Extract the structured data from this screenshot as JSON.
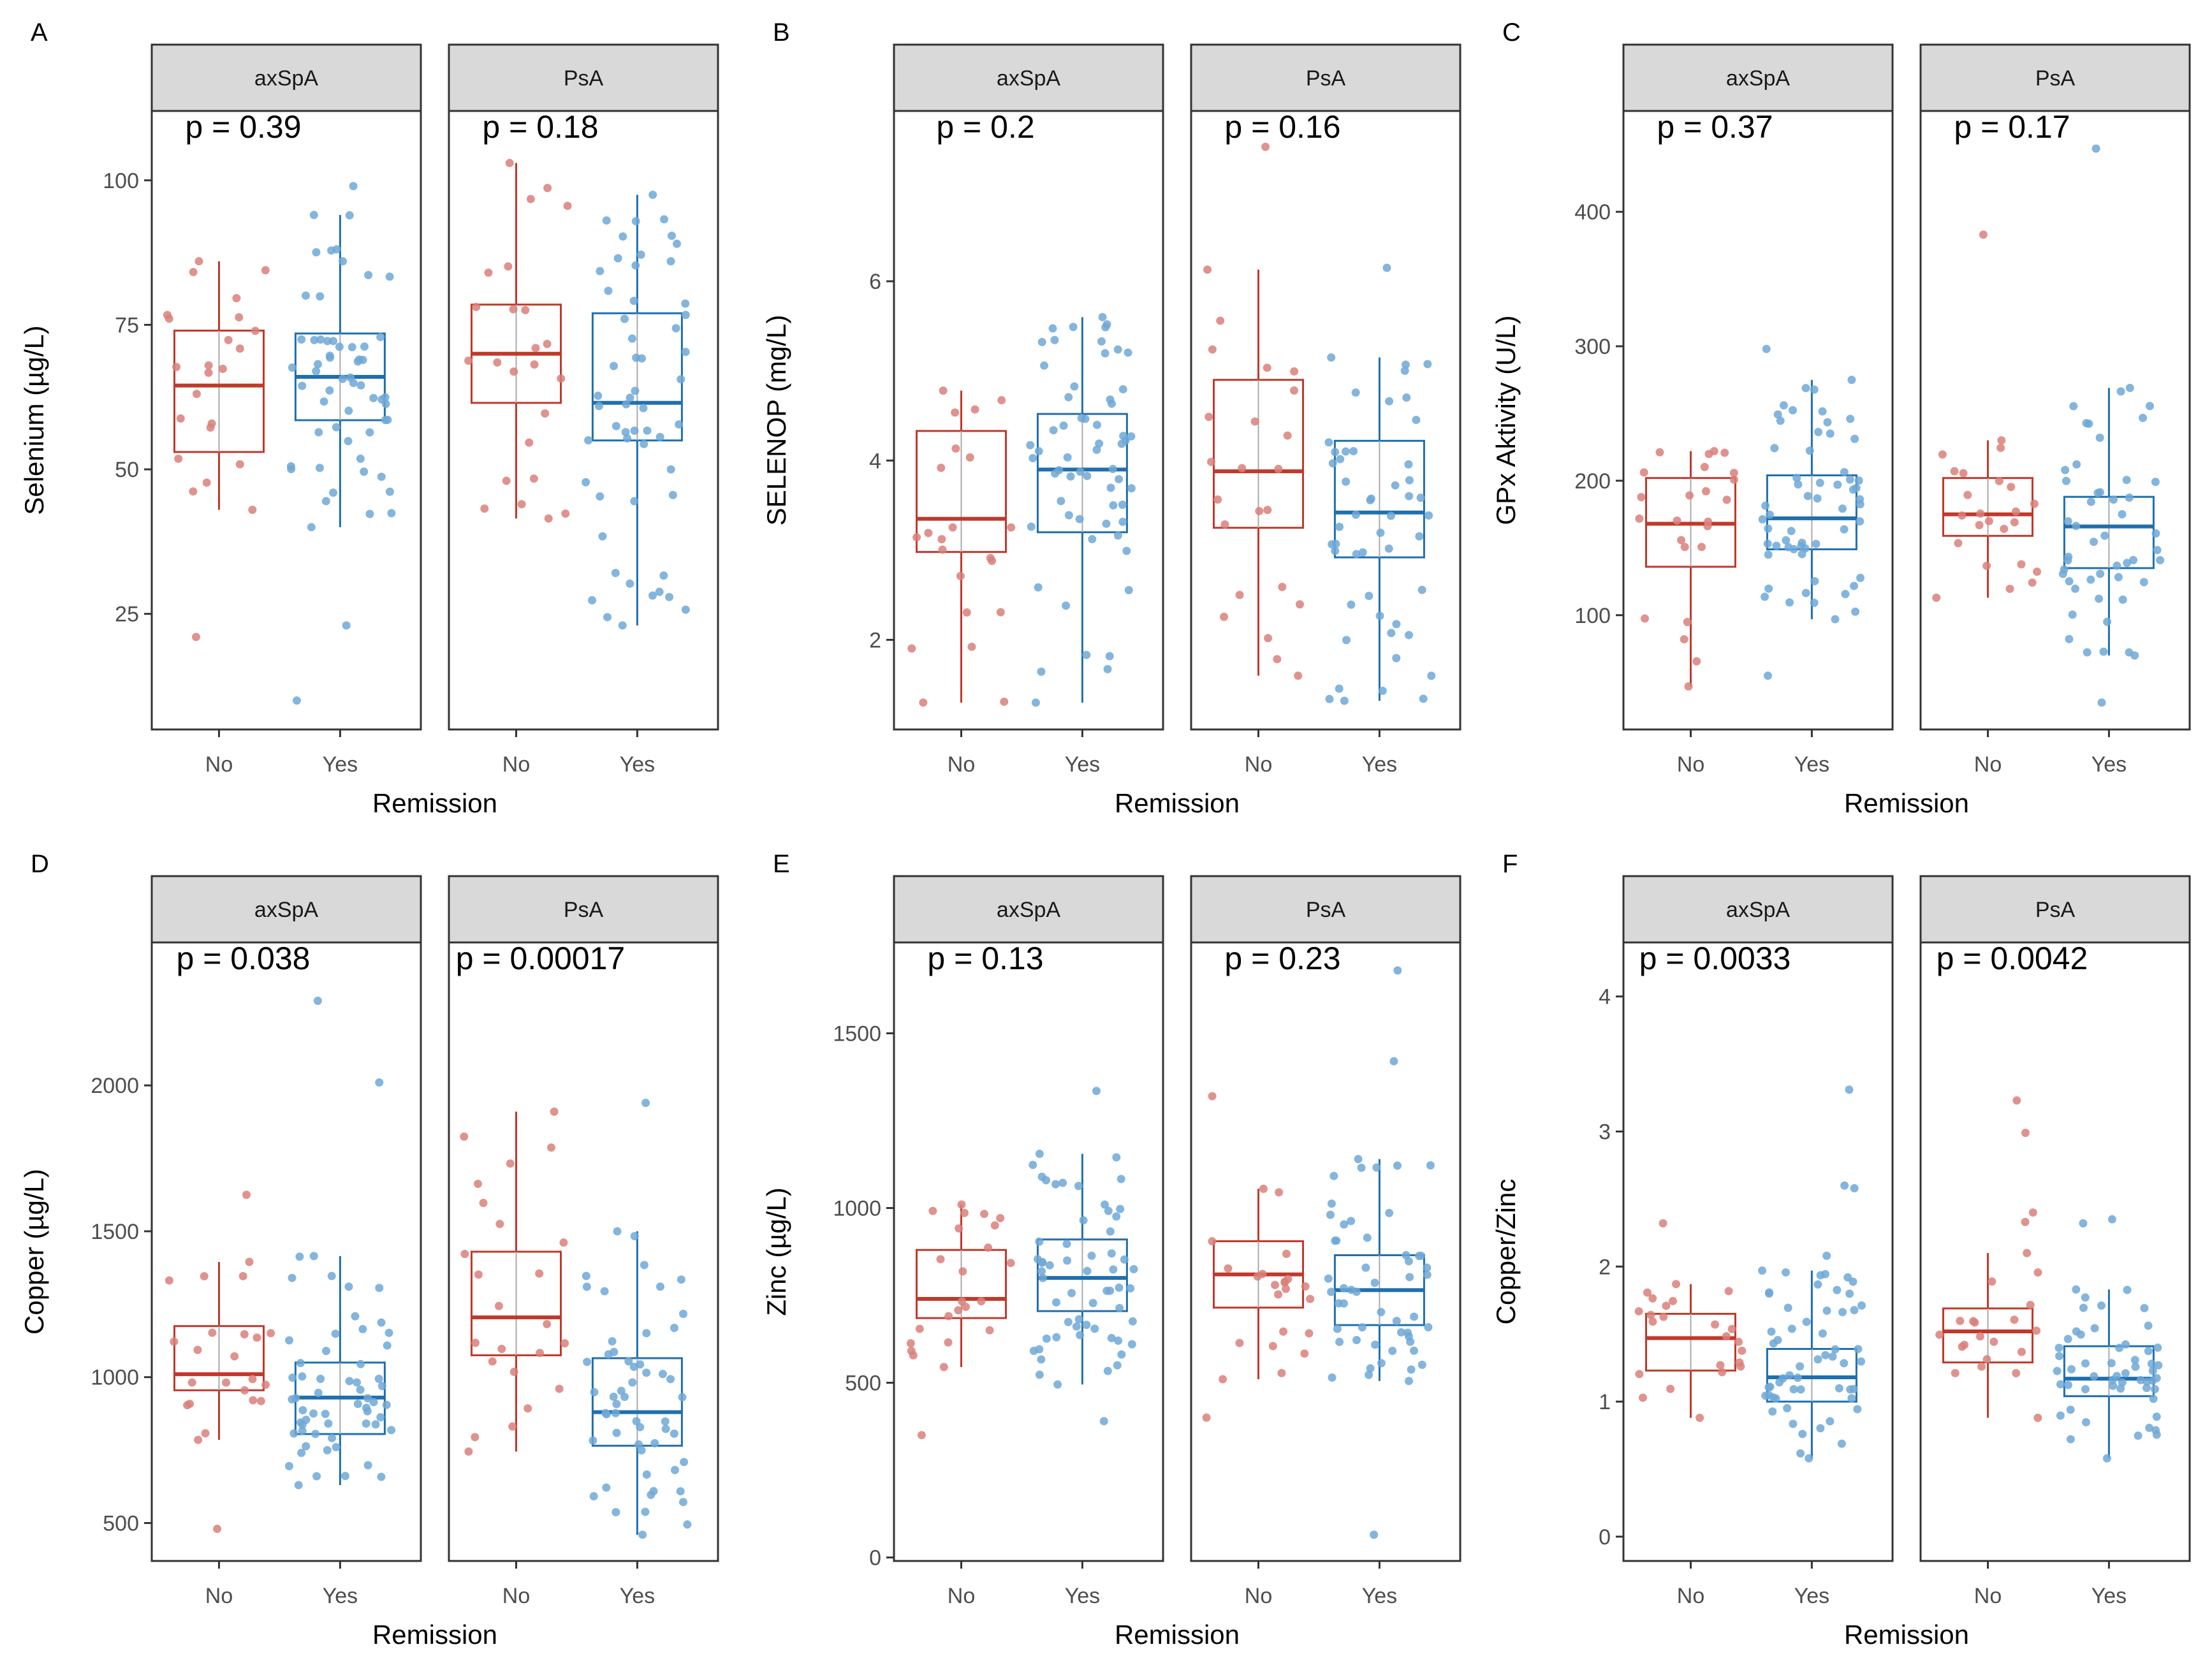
{
  "figure": {
    "box_colors": {
      "No": "#c0392b",
      "Yes": "#1f6fae"
    },
    "point_colors": {
      "No": "#d9807a",
      "Yes": "#6fa8d6"
    },
    "strip_fill": "#d9d9d9"
  },
  "chart_data": [
    {
      "type": "boxplot",
      "panel_letter": "A",
      "ylabel": "Selenium (µg/L)",
      "xlabel": "Remission",
      "categories": [
        "No",
        "Yes"
      ],
      "ylim": [
        5,
        112
      ],
      "yticks": [
        25,
        50,
        75,
        100
      ],
      "facets": [
        {
          "name": "axSpA",
          "p_label": "p = 0.39",
          "groups": [
            {
              "group": "No",
              "min": 43,
              "q1": 53,
              "median": 64.5,
              "q3": 74,
              "max": 86,
              "n": 24,
              "outliers": [
                21
              ]
            },
            {
              "group": "Yes",
              "min": 40,
              "q1": 58.5,
              "median": 66,
              "q3": 73.5,
              "max": 94,
              "n": 60,
              "outliers": [
                99,
                23,
                10
              ]
            }
          ]
        },
        {
          "name": "PsA",
          "p_label": "p = 0.18",
          "groups": [
            {
              "group": "No",
              "min": 41.5,
              "q1": 61.5,
              "median": 70,
              "q3": 78.5,
              "max": 103,
              "n": 24,
              "outliers": []
            },
            {
              "group": "Yes",
              "min": 23,
              "q1": 55,
              "median": 61.5,
              "q3": 77,
              "max": 97.5,
              "n": 55,
              "outliers": []
            }
          ]
        }
      ]
    },
    {
      "type": "boxplot",
      "panel_letter": "B",
      "ylabel": "SELENOP (mg/L)",
      "xlabel": "Remission",
      "categories": [
        "No",
        "Yes"
      ],
      "ylim": [
        1,
        7.9
      ],
      "yticks": [
        2,
        4,
        6
      ],
      "facets": [
        {
          "name": "axSpA",
          "p_label": "p = 0.2",
          "groups": [
            {
              "group": "No",
              "min": 1.3,
              "q1": 2.98,
              "median": 3.35,
              "q3": 4.33,
              "max": 4.78,
              "n": 22,
              "outliers": []
            },
            {
              "group": "Yes",
              "min": 1.3,
              "q1": 3.2,
              "median": 3.9,
              "q3": 4.52,
              "max": 5.6,
              "n": 60,
              "outliers": []
            }
          ]
        },
        {
          "name": "PsA",
          "p_label": "p = 0.16",
          "groups": [
            {
              "group": "No",
              "min": 1.6,
              "q1": 3.25,
              "median": 3.88,
              "q3": 4.9,
              "max": 6.13,
              "n": 24,
              "outliers": [
                7.5
              ]
            },
            {
              "group": "Yes",
              "min": 1.32,
              "q1": 2.92,
              "median": 3.42,
              "q3": 4.22,
              "max": 5.15,
              "n": 50,
              "outliers": [
                6.15
              ]
            }
          ]
        }
      ]
    },
    {
      "type": "boxplot",
      "panel_letter": "C",
      "ylabel": "GPx Aktivity (U/L)",
      "xlabel": "Remission",
      "categories": [
        "No",
        "Yes"
      ],
      "ylim": [
        15,
        475
      ],
      "yticks": [
        100,
        200,
        300,
        400
      ],
      "facets": [
        {
          "name": "axSpA",
          "p_label": "p = 0.37",
          "groups": [
            {
              "group": "No",
              "min": 47,
              "q1": 136,
              "median": 168,
              "q3": 202,
              "max": 222,
              "n": 24,
              "outliers": []
            },
            {
              "group": "Yes",
              "min": 97,
              "q1": 149,
              "median": 172,
              "q3": 204,
              "max": 275,
              "n": 60,
              "outliers": [
                298,
                55
              ]
            }
          ]
        },
        {
          "name": "PsA",
          "p_label": "p = 0.17",
          "groups": [
            {
              "group": "No",
              "min": 113,
              "q1": 159,
              "median": 175,
              "q3": 202,
              "max": 230,
              "n": 24,
              "outliers": [
                383
              ]
            },
            {
              "group": "Yes",
              "min": 70,
              "q1": 135,
              "median": 166,
              "q3": 188,
              "max": 269,
              "n": 50,
              "outliers": [
                447,
                35
              ]
            }
          ]
        }
      ]
    },
    {
      "type": "boxplot",
      "panel_letter": "D",
      "ylabel": "Copper (µg/L)",
      "xlabel": "Remission",
      "categories": [
        "No",
        "Yes"
      ],
      "ylim": [
        370,
        2490
      ],
      "yticks": [
        500,
        1000,
        1500,
        2000
      ],
      "facets": [
        {
          "name": "axSpA",
          "p_label": "p = 0.038",
          "groups": [
            {
              "group": "No",
              "min": 785,
              "q1": 955,
              "median": 1010,
              "q3": 1175,
              "max": 1395,
              "n": 24,
              "outliers": [
                1625,
                480
              ]
            },
            {
              "group": "Yes",
              "min": 630,
              "q1": 805,
              "median": 930,
              "q3": 1050,
              "max": 1415,
              "n": 60,
              "outliers": [
                2290,
                2010
              ]
            }
          ]
        },
        {
          "name": "PsA",
          "p_label": "p = 0.00017",
          "groups": [
            {
              "group": "No",
              "min": 745,
              "q1": 1075,
              "median": 1205,
              "q3": 1430,
              "max": 1910,
              "n": 24,
              "outliers": []
            },
            {
              "group": "Yes",
              "min": 460,
              "q1": 765,
              "median": 880,
              "q3": 1065,
              "max": 1500,
              "n": 55,
              "outliers": [
                1940
              ]
            }
          ]
        }
      ]
    },
    {
      "type": "boxplot",
      "panel_letter": "E",
      "ylabel": "Zinc (µg/L)",
      "xlabel": "Remission",
      "categories": [
        "No",
        "Yes"
      ],
      "ylim": [
        -10,
        1760
      ],
      "yticks": [
        0,
        500,
        1000,
        1500
      ],
      "facets": [
        {
          "name": "axSpA",
          "p_label": "p = 0.13",
          "groups": [
            {
              "group": "No",
              "min": 545,
              "q1": 685,
              "median": 740,
              "q3": 880,
              "max": 1010,
              "n": 24,
              "outliers": [
                350
              ]
            },
            {
              "group": "Yes",
              "min": 495,
              "q1": 705,
              "median": 800,
              "q3": 910,
              "max": 1155,
              "n": 60,
              "outliers": [
                1335,
                390
              ]
            }
          ]
        },
        {
          "name": "PsA",
          "p_label": "p = 0.23",
          "groups": [
            {
              "group": "No",
              "min": 510,
              "q1": 715,
              "median": 810,
              "q3": 905,
              "max": 1055,
              "n": 24,
              "outliers": [
                1320,
                400
              ]
            },
            {
              "group": "Yes",
              "min": 505,
              "q1": 665,
              "median": 765,
              "q3": 865,
              "max": 1140,
              "n": 55,
              "outliers": [
                1680,
                1420,
                65
              ]
            }
          ]
        }
      ]
    },
    {
      "type": "boxplot",
      "panel_letter": "F",
      "ylabel": "Copper/Zinc",
      "xlabel": "Remission",
      "categories": [
        "No",
        "Yes"
      ],
      "ylim": [
        -0.18,
        4.4
      ],
      "yticks": [
        0,
        1,
        2,
        3,
        4
      ],
      "facets": [
        {
          "name": "axSpA",
          "p_label": "p = 0.0033",
          "groups": [
            {
              "group": "No",
              "min": 0.88,
              "q1": 1.23,
              "median": 1.47,
              "q3": 1.65,
              "max": 1.87,
              "n": 24,
              "outliers": [
                2.32
              ]
            },
            {
              "group": "Yes",
              "min": 0.58,
              "q1": 1.0,
              "median": 1.18,
              "q3": 1.39,
              "max": 1.97,
              "n": 60,
              "outliers": [
                3.31,
                2.6,
                2.58,
                2.08
              ]
            }
          ]
        },
        {
          "name": "PsA",
          "p_label": "p = 0.0042",
          "groups": [
            {
              "group": "No",
              "min": 0.88,
              "q1": 1.29,
              "median": 1.52,
              "q3": 1.69,
              "max": 2.1,
              "n": 24,
              "outliers": [
                3.23,
                2.99,
                2.4,
                2.33
              ]
            },
            {
              "group": "Yes",
              "min": 0.58,
              "q1": 1.04,
              "median": 1.17,
              "q3": 1.41,
              "max": 1.83,
              "n": 55,
              "outliers": [
                2.35,
                2.32
              ]
            }
          ]
        }
      ]
    }
  ]
}
